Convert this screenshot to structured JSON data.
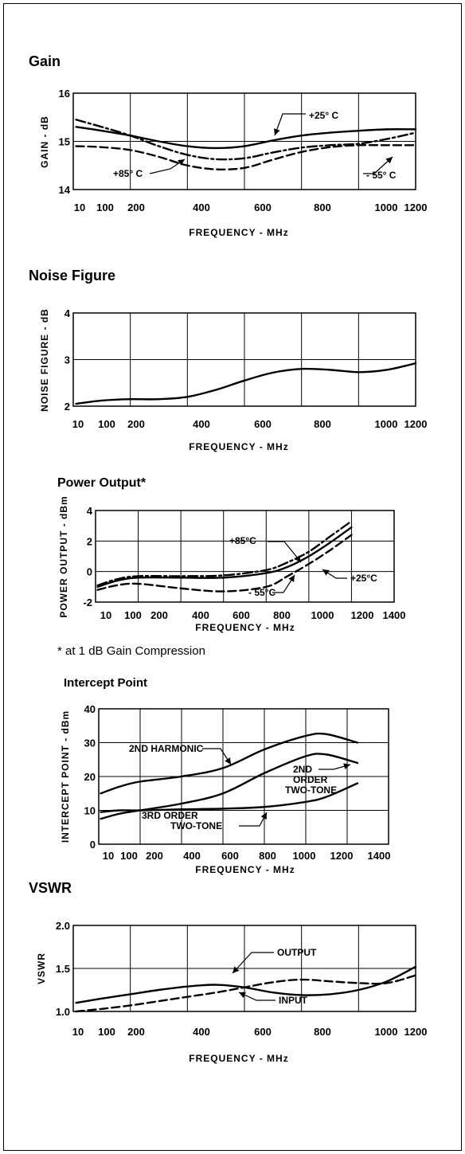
{
  "chart_data": [
    {
      "type": "line",
      "title": "Gain",
      "xlabel": "FREQUENCY - MHz",
      "ylabel": "GAIN - dB",
      "xticks": [
        "10",
        "100",
        "200",
        "400",
        "600",
        "800",
        "1000",
        "1200"
      ],
      "yticks": [
        "16",
        "15",
        "14"
      ],
      "xlim": [
        0,
        1200
      ],
      "ylim": [
        14,
        16
      ],
      "grid": true,
      "series": [
        {
          "name": "+25° C",
          "style": "solid",
          "x": [
            10,
            100,
            200,
            300,
            400,
            500,
            600,
            700,
            800,
            900,
            1000,
            1100,
            1200
          ],
          "y": [
            15.3,
            15.22,
            15.12,
            15.0,
            14.9,
            14.86,
            14.9,
            15.02,
            15.12,
            15.18,
            15.22,
            15.25,
            15.25
          ]
        },
        {
          "name": "- 55° C",
          "style": "dashdot",
          "x": [
            10,
            100,
            200,
            300,
            400,
            500,
            600,
            700,
            800,
            900,
            1000,
            1100,
            1200
          ],
          "y": [
            15.45,
            15.3,
            15.12,
            14.9,
            14.72,
            14.63,
            14.65,
            14.77,
            14.87,
            14.92,
            14.95,
            15.05,
            15.18
          ]
        },
        {
          "name": "+85° C",
          "style": "dashed",
          "x": [
            10,
            100,
            200,
            300,
            400,
            500,
            600,
            700,
            800,
            900,
            1000,
            1100,
            1200
          ],
          "y": [
            14.9,
            14.88,
            14.82,
            14.68,
            14.5,
            14.42,
            14.45,
            14.62,
            14.78,
            14.88,
            14.92,
            14.92,
            14.92
          ]
        }
      ],
      "annotations": [
        "+25° C",
        "+85° C",
        "- 55° C"
      ]
    },
    {
      "type": "line",
      "title": "Noise Figure",
      "xlabel": "FREQUENCY - MHz",
      "ylabel": "NOISE FIGURE - dB",
      "xticks": [
        "10",
        "100",
        "200",
        "400",
        "600",
        "800",
        "1000",
        "1200"
      ],
      "yticks": [
        "4",
        "3",
        "2"
      ],
      "xlim": [
        0,
        1200
      ],
      "ylim": [
        2,
        4
      ],
      "grid": true,
      "series": [
        {
          "style": "solid",
          "x": [
            10,
            100,
            200,
            300,
            400,
            500,
            600,
            700,
            800,
            900,
            1000,
            1100,
            1200
          ],
          "y": [
            2.05,
            2.12,
            2.15,
            2.15,
            2.2,
            2.35,
            2.55,
            2.72,
            2.8,
            2.78,
            2.73,
            2.78,
            2.92
          ]
        }
      ]
    },
    {
      "type": "line",
      "title": "Power Output*",
      "xlabel": "FREQUENCY - MHz",
      "ylabel": "POWER OUTPUT - dBm",
      "xticks": [
        "10",
        "100",
        "200",
        "400",
        "600",
        "800",
        "1000",
        "1200",
        "1400"
      ],
      "yticks": [
        "4",
        "2",
        "0",
        "-2"
      ],
      "xlim": [
        0,
        1400
      ],
      "ylim": [
        -2,
        4
      ],
      "grid": true,
      "footnote": "* at 1 dB Gain Compression",
      "series": [
        {
          "name": "+85°C",
          "style": "dashdot",
          "x": [
            10,
            100,
            200,
            400,
            600,
            800,
            900,
            1000,
            1100,
            1200
          ],
          "y": [
            -0.9,
            -0.5,
            -0.3,
            -0.3,
            -0.25,
            0.1,
            0.6,
            1.3,
            2.3,
            3.3
          ]
        },
        {
          "name": "+25°C",
          "style": "solid",
          "x": [
            10,
            100,
            200,
            400,
            600,
            800,
            900,
            1000,
            1100,
            1200
          ],
          "y": [
            -1.0,
            -0.6,
            -0.4,
            -0.4,
            -0.4,
            -0.1,
            0.3,
            1.0,
            1.9,
            2.9
          ]
        },
        {
          "name": "- 55°C",
          "style": "dashed",
          "x": [
            10,
            100,
            200,
            400,
            600,
            800,
            900,
            1000,
            1100,
            1200
          ],
          "y": [
            -1.2,
            -0.9,
            -0.8,
            -1.1,
            -1.3,
            -1.0,
            -0.3,
            0.5,
            1.4,
            2.4
          ]
        }
      ],
      "annotations": [
        "+85°C",
        "+25°C",
        "- 55°C"
      ]
    },
    {
      "type": "line",
      "title": "Intercept Point",
      "xlabel": "FREQUENCY - MHz",
      "ylabel": "INTERCEPT POINT - dBm",
      "xticks": [
        "10",
        "100",
        "200",
        "400",
        "600",
        "800",
        "1000",
        "1200",
        "1400"
      ],
      "yticks": [
        "40",
        "30",
        "20",
        "10",
        "0"
      ],
      "xlim": [
        0,
        1400
      ],
      "ylim": [
        0,
        40
      ],
      "grid": true,
      "series": [
        {
          "name": "2ND HARMONIC",
          "style": "solid",
          "x": [
            10,
            100,
            200,
            400,
            600,
            800,
            1000,
            1100,
            1250
          ],
          "y": [
            15,
            17,
            18.5,
            20,
            22.5,
            28,
            32,
            32.5,
            30
          ]
        },
        {
          "name": "2ND ORDER TWO-TONE",
          "style": "solid",
          "x": [
            10,
            100,
            200,
            400,
            600,
            800,
            1000,
            1100,
            1250
          ],
          "y": [
            7.5,
            9,
            10,
            12,
            15,
            21,
            26,
            26.5,
            24
          ]
        },
        {
          "name": "3RD ORDER TWO-TONE",
          "style": "solid",
          "x": [
            10,
            100,
            200,
            400,
            600,
            800,
            1000,
            1100,
            1250
          ],
          "y": [
            9.5,
            10,
            10,
            10.3,
            10.5,
            11,
            12.5,
            14,
            18
          ]
        }
      ],
      "annotations": [
        "2ND HARMONIC",
        "2ND",
        "ORDER",
        "TWO-TONE",
        "3RD ORDER",
        "TWO-TONE"
      ]
    },
    {
      "type": "line",
      "title": "VSWR",
      "xlabel": "FREQUENCY - MHz",
      "ylabel": "VSWR",
      "xticks": [
        "10",
        "100",
        "200",
        "400",
        "600",
        "800",
        "1000",
        "1200"
      ],
      "yticks": [
        "2.0",
        "1.5",
        "1.0"
      ],
      "xlim": [
        0,
        1200
      ],
      "ylim": [
        1.0,
        2.0
      ],
      "grid": true,
      "series": [
        {
          "name": "OUTPUT",
          "style": "solid",
          "x": [
            10,
            100,
            200,
            300,
            400,
            500,
            600,
            700,
            800,
            900,
            1000,
            1100,
            1200
          ],
          "y": [
            1.1,
            1.15,
            1.2,
            1.25,
            1.29,
            1.31,
            1.28,
            1.22,
            1.19,
            1.2,
            1.25,
            1.35,
            1.52
          ]
        },
        {
          "name": "INPUT",
          "style": "dashed",
          "x": [
            10,
            100,
            200,
            300,
            400,
            500,
            600,
            700,
            800,
            900,
            1000,
            1100,
            1200
          ],
          "y": [
            1.0,
            1.03,
            1.07,
            1.12,
            1.17,
            1.22,
            1.28,
            1.34,
            1.37,
            1.35,
            1.33,
            1.33,
            1.42
          ]
        }
      ],
      "annotations": [
        "OUTPUT",
        "INPUT"
      ]
    }
  ]
}
